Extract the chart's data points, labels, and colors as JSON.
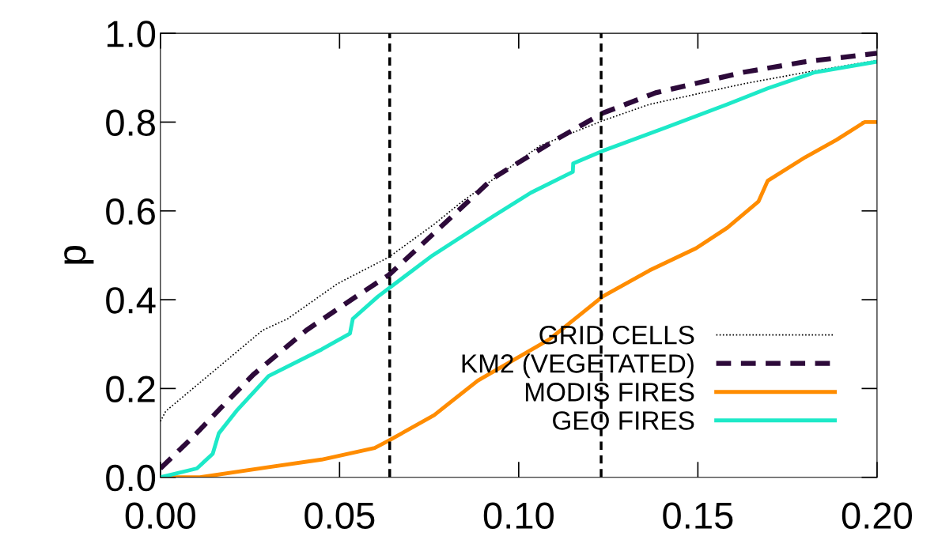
{
  "chart_data": {
    "type": "line",
    "ylabel": "p",
    "xlim": [
      0,
      0.2
    ],
    "ylim": [
      0,
      1.0
    ],
    "xticks": [
      {
        "value": 0,
        "label": "0.00"
      },
      {
        "value": 0.05,
        "label": "0.05"
      },
      {
        "value": 0.1,
        "label": "0.10"
      },
      {
        "value": 0.15,
        "label": "0.15"
      },
      {
        "value": 0.2,
        "label": "0.20"
      }
    ],
    "yticks": [
      {
        "value": 0,
        "label": "0.0"
      },
      {
        "value": 0.2,
        "label": "0.2"
      },
      {
        "value": 0.4,
        "label": "0.4"
      },
      {
        "value": 0.6,
        "label": "0.6"
      },
      {
        "value": 0.8,
        "label": "0.8"
      },
      {
        "value": 1.0,
        "label": "1.0"
      }
    ],
    "grid": false,
    "legend": "bottom right",
    "ref_lines": [
      {
        "axis": "x",
        "value": 0.064,
        "color": "#000000",
        "line_style": "dashed"
      },
      {
        "axis": "x",
        "value": 0.123,
        "color": "#000000",
        "line_style": "dashed"
      }
    ],
    "series": [
      {
        "name": "GRID CELLS",
        "color": "#000000",
        "line_style": "dotted",
        "x": [
          0,
          0.0015,
          0.0285,
          0.0355,
          0.0494,
          0.0638,
          0.0764,
          0.0842,
          0.106,
          0.1234,
          0.1365,
          0.1626,
          0.18,
          0.2
        ],
        "values": [
          0.126,
          0.149,
          0.331,
          0.357,
          0.436,
          0.496,
          0.57,
          0.621,
          0.747,
          0.803,
          0.84,
          0.886,
          0.912,
          0.939
        ]
      },
      {
        "name": "KM2 (VEGETATED)",
        "color": "#2d0a3a",
        "line_style": "dashed",
        "x": [
          0,
          0.0085,
          0.0172,
          0.0259,
          0.0407,
          0.0546,
          0.0638,
          0.0764,
          0.0929,
          0.1103,
          0.1234,
          0.1382,
          0.1626,
          0.18,
          0.2
        ],
        "values": [
          0.02,
          0.086,
          0.159,
          0.231,
          0.331,
          0.407,
          0.456,
          0.55,
          0.674,
          0.76,
          0.82,
          0.866,
          0.912,
          0.936,
          0.955
        ]
      },
      {
        "name": "MODIS FIRES",
        "color": "#ff8c00",
        "line_style": "solid",
        "x": [
          0,
          0.011,
          0.0302,
          0.045,
          0.0598,
          0.0638,
          0.0764,
          0.0886,
          0.1086,
          0.1234,
          0.1365,
          0.1495,
          0.1582,
          0.1669,
          0.1695,
          0.18,
          0.1887,
          0.1965,
          0.2
        ],
        "values": [
          0,
          0,
          0.023,
          0.04,
          0.066,
          0.083,
          0.14,
          0.218,
          0.311,
          0.407,
          0.466,
          0.516,
          0.562,
          0.621,
          0.668,
          0.721,
          0.76,
          0.8,
          0.8
        ]
      },
      {
        "name": "GEO FIRES",
        "color": "#1de9c8",
        "line_style": "solid",
        "x": [
          0,
          0.0102,
          0.0146,
          0.0163,
          0.0215,
          0.0302,
          0.045,
          0.0529,
          0.0537,
          0.0607,
          0.076,
          0.0929,
          0.1034,
          0.1151,
          0.1152,
          0.1234,
          0.1408,
          0.1582,
          0.1695,
          0.1826,
          0.2
        ],
        "values": [
          0,
          0.02,
          0.053,
          0.099,
          0.152,
          0.228,
          0.288,
          0.324,
          0.357,
          0.407,
          0.5,
          0.588,
          0.641,
          0.688,
          0.707,
          0.735,
          0.787,
          0.84,
          0.876,
          0.912,
          0.936
        ]
      }
    ]
  }
}
